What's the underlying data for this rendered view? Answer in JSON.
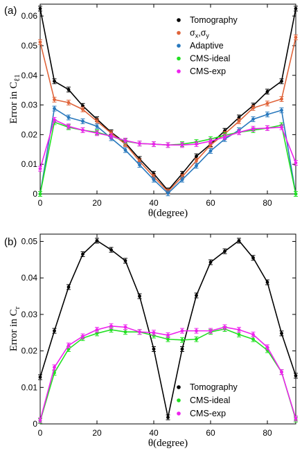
{
  "chart_data": [
    {
      "type": "line",
      "panel_label": "(a)",
      "xlabel": "θ(degree)",
      "ylabel": "Error in C",
      "ylabel_sub": "ℓ1",
      "xlim": [
        0,
        90
      ],
      "ylim": [
        0,
        0.064
      ],
      "xticks": [
        0,
        20,
        40,
        60,
        80
      ],
      "yticks": [
        0,
        0.01,
        0.02,
        0.03,
        0.04,
        0.05,
        0.06
      ],
      "ytick_labels": [
        "0",
        "0.01",
        "0.02",
        "0.03",
        "0.04",
        "0.05",
        "0.06"
      ],
      "grid": false,
      "legend_position": "top-right",
      "x": [
        0,
        5,
        10,
        15,
        20,
        25,
        30,
        35,
        40,
        45,
        50,
        55,
        60,
        65,
        70,
        75,
        80,
        85,
        90
      ],
      "series": [
        {
          "name": "Tomography",
          "color": "#000000",
          "values": [
            0.0625,
            0.038,
            0.0352,
            0.0297,
            0.0252,
            0.0208,
            0.0172,
            0.0118,
            0.0068,
            0.0012,
            0.0068,
            0.0127,
            0.0168,
            0.0213,
            0.0258,
            0.0298,
            0.0345,
            0.038,
            0.0625
          ]
        },
        {
          "name": "σx,σy",
          "legend_main": [
            "σ",
            ",σ"
          ],
          "legend_sub": [
            "x",
            "y"
          ],
          "color": "#e0643a",
          "values": [
            0.0512,
            0.0318,
            0.0308,
            0.0285,
            0.0245,
            0.0205,
            0.0168,
            0.011,
            0.0058,
            0.0008,
            0.0058,
            0.0112,
            0.0165,
            0.0203,
            0.0245,
            0.029,
            0.0305,
            0.032,
            0.0528
          ]
        },
        {
          "name": "Adaptive",
          "color": "#2878bd",
          "values": [
            0.0,
            0.0288,
            0.0258,
            0.0245,
            0.0228,
            0.0188,
            0.0148,
            0.0098,
            0.0048,
            0.0002,
            0.0048,
            0.0095,
            0.0145,
            0.0185,
            0.0215,
            0.0252,
            0.0268,
            0.0282,
            0.0
          ]
        },
        {
          "name": "CMS-ideal",
          "color": "#22e022",
          "values": [
            0.0,
            0.0242,
            0.0225,
            0.0215,
            0.0208,
            0.0195,
            0.0178,
            0.017,
            0.0168,
            0.0165,
            0.0168,
            0.0175,
            0.0185,
            0.0198,
            0.0208,
            0.0215,
            0.0222,
            0.0232,
            0.0
          ]
        },
        {
          "name": "CMS-exp",
          "color": "#ee22ee",
          "values": [
            0.0085,
            0.025,
            0.0228,
            0.0215,
            0.0205,
            0.0195,
            0.018,
            0.017,
            0.0168,
            0.0165,
            0.0165,
            0.0168,
            0.0178,
            0.0192,
            0.0208,
            0.022,
            0.0222,
            0.0225,
            0.0105
          ]
        }
      ]
    },
    {
      "type": "line",
      "panel_label": "(b)",
      "xlabel": "θ(degree)",
      "ylabel": "Error in C",
      "ylabel_sub": "r",
      "xlim": [
        0,
        90
      ],
      "ylim": [
        0,
        0.052
      ],
      "xticks": [
        0,
        20,
        40,
        60,
        80
      ],
      "yticks": [
        0,
        0.01,
        0.02,
        0.03,
        0.04,
        0.05
      ],
      "ytick_labels": [
        "0",
        "0.01",
        "0.02",
        "0.03",
        "0.04",
        "0.05"
      ],
      "grid": false,
      "legend_position": "bottom-right",
      "x": [
        0,
        5,
        10,
        15,
        20,
        25,
        30,
        35,
        40,
        45,
        50,
        55,
        60,
        65,
        70,
        75,
        80,
        85,
        90
      ],
      "series": [
        {
          "name": "Tomography",
          "color": "#000000",
          "values": [
            0.0128,
            0.0255,
            0.0375,
            0.0465,
            0.0502,
            0.0477,
            0.0447,
            0.035,
            0.0205,
            0.0018,
            0.0205,
            0.0352,
            0.0443,
            0.0473,
            0.0502,
            0.0455,
            0.0388,
            0.0248,
            0.0132
          ]
        },
        {
          "name": "CMS-ideal",
          "color": "#22e022",
          "values": [
            0.0008,
            0.014,
            0.0205,
            0.0235,
            0.0248,
            0.0258,
            0.0252,
            0.0252,
            0.0242,
            0.0232,
            0.023,
            0.0232,
            0.0252,
            0.026,
            0.0245,
            0.0232,
            0.0202,
            0.0142,
            0.0012
          ]
        },
        {
          "name": "CMS-exp",
          "color": "#ee22ee",
          "values": [
            0.001,
            0.0155,
            0.0215,
            0.024,
            0.0258,
            0.0268,
            0.0265,
            0.0252,
            0.025,
            0.0243,
            0.0255,
            0.0255,
            0.0255,
            0.0265,
            0.0258,
            0.0245,
            0.021,
            0.0142,
            0.0015
          ]
        }
      ]
    }
  ]
}
